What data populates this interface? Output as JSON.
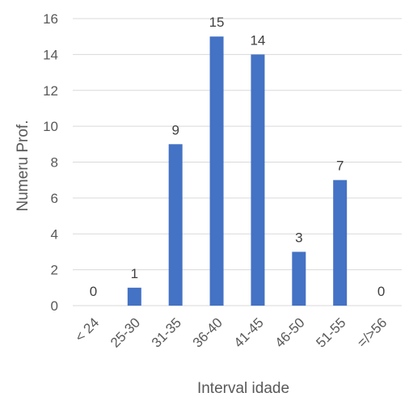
{
  "chart_data": {
    "type": "bar",
    "categories": [
      "< 24",
      "25-30",
      "31-35",
      "36-40",
      "41-45",
      "46-50",
      "51-55",
      "=/>56"
    ],
    "values": [
      0,
      1,
      9,
      15,
      14,
      3,
      7,
      0
    ],
    "xlabel": "Interval idade",
    "ylabel": "Numeru Prof.",
    "ylim": [
      0,
      16
    ],
    "yticks": [
      0,
      2,
      4,
      6,
      8,
      10,
      12,
      14,
      16
    ],
    "grid": true,
    "legend": "none",
    "bar_color": "#4472C4",
    "grid_color": "#D9D9D9"
  }
}
